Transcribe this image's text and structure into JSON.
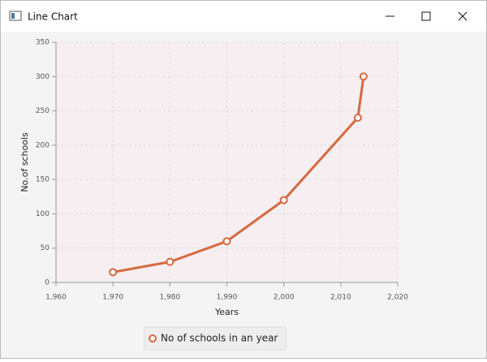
{
  "window": {
    "title": "Line Chart"
  },
  "chart_data": {
    "type": "line",
    "x": [
      1970,
      1980,
      1990,
      2000,
      2013,
      2014
    ],
    "series": [
      {
        "name": "No of schools in an year",
        "color": "#d6693d",
        "values": [
          15,
          30,
          60,
          120,
          240,
          300
        ]
      }
    ],
    "xlabel": "Years",
    "ylabel": "No.of schools",
    "xlim": [
      1960,
      2020
    ],
    "xticks": [
      {
        "value": 1960,
        "label": "1,960"
      },
      {
        "value": 1970,
        "label": "1,970"
      },
      {
        "value": 1980,
        "label": "1,980"
      },
      {
        "value": 1990,
        "label": "1,990"
      },
      {
        "value": 2000,
        "label": "2,000"
      },
      {
        "value": 2010,
        "label": "2,010"
      },
      {
        "value": 2020,
        "label": "2,020"
      }
    ],
    "ylim": [
      0,
      350
    ],
    "yticks": [
      0,
      50,
      100,
      150,
      200,
      250,
      300,
      350
    ],
    "grid": true,
    "legend": "bottom"
  }
}
